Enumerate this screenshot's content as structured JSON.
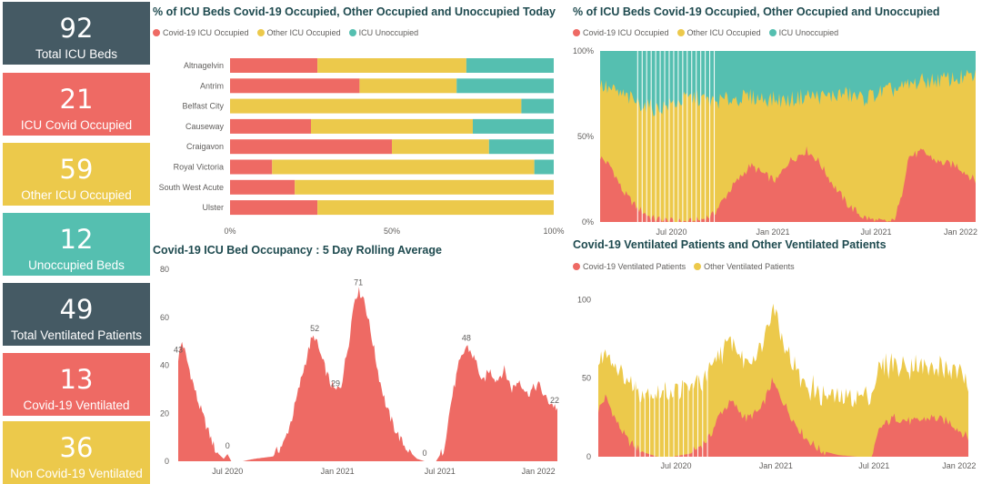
{
  "cards": [
    {
      "value": "92",
      "label": "Total ICU Beds",
      "style": "slate"
    },
    {
      "value": "21",
      "label": "ICU Covid Occupied",
      "style": "red"
    },
    {
      "value": "59",
      "label": "Other ICU Occupied",
      "style": "yellow"
    },
    {
      "value": "12",
      "label": "Unoccupied Beds",
      "style": "teal"
    },
    {
      "value": "49",
      "label": "Total Ventilated Patients",
      "style": "slate"
    },
    {
      "value": "13",
      "label": "Covid-19 Ventilated",
      "style": "red"
    },
    {
      "value": "36",
      "label": "Non Covid-19 Ventilated",
      "style": "yellow"
    }
  ],
  "colors": {
    "covid": "#ee6a64",
    "other": "#ecc94b",
    "unoccupied": "#55bfb0",
    "slate": "#455a64",
    "title": "#1e4a4f",
    "axis": "#605e5c"
  },
  "chart_data": [
    {
      "id": "today_bar",
      "type": "bar",
      "orientation": "horizontal",
      "stacked": "100%",
      "title": "% of ICU Beds Covid-19 Occupied, Other Occupied and Unoccupied Today",
      "categories": [
        "Altnagelvin",
        "Antrim",
        "Belfast City",
        "Causeway",
        "Craigavon",
        "Royal Victoria",
        "South West Acute",
        "Ulster"
      ],
      "series": [
        {
          "name": "Covid-19 ICU Occupied",
          "values": [
            27,
            40,
            0,
            25,
            50,
            13,
            20,
            27
          ]
        },
        {
          "name": "Other ICU Occupied",
          "values": [
            46,
            30,
            90,
            50,
            30,
            81,
            80,
            73
          ]
        },
        {
          "name": "ICU Unoccupied",
          "values": [
            27,
            30,
            10,
            25,
            20,
            6,
            0,
            0
          ]
        }
      ],
      "x_ticks": [
        "0%",
        "50%",
        "100%"
      ],
      "legend": "top-left"
    },
    {
      "id": "pct_area",
      "type": "area",
      "stacked": "100%",
      "title": "% of ICU Beds Covid-19 Occupied, Other Occupied and Unoccupied",
      "series": [
        {
          "name": "Covid-19 ICU Occupied",
          "keypoints": [
            [
              0,
              38
            ],
            [
              0.03,
              32
            ],
            [
              0.06,
              18
            ],
            [
              0.1,
              8
            ],
            [
              0.14,
              2
            ],
            [
              0.2,
              0
            ],
            [
              0.25,
              0
            ],
            [
              0.3,
              4
            ],
            [
              0.35,
              20
            ],
            [
              0.4,
              33
            ],
            [
              0.45,
              26
            ],
            [
              0.47,
              24
            ],
            [
              0.5,
              35
            ],
            [
              0.55,
              42
            ],
            [
              0.58,
              36
            ],
            [
              0.62,
              22
            ],
            [
              0.66,
              10
            ],
            [
              0.7,
              3
            ],
            [
              0.74,
              0
            ],
            [
              0.78,
              0
            ],
            [
              0.8,
              12
            ],
            [
              0.82,
              38
            ],
            [
              0.86,
              41
            ],
            [
              0.9,
              35
            ],
            [
              0.95,
              33
            ],
            [
              1.0,
              24
            ]
          ]
        },
        {
          "name": "Other ICU Occupied",
          "keypoints": [
            [
              0,
              80
            ],
            [
              0.05,
              75
            ],
            [
              0.1,
              70
            ],
            [
              0.15,
              66
            ],
            [
              0.2,
              70
            ],
            [
              0.25,
              73
            ],
            [
              0.3,
              70
            ],
            [
              0.35,
              72
            ],
            [
              0.4,
              73
            ],
            [
              0.45,
              72
            ],
            [
              0.5,
              71
            ],
            [
              0.55,
              74
            ],
            [
              0.6,
              73
            ],
            [
              0.65,
              75
            ],
            [
              0.7,
              72
            ],
            [
              0.75,
              76
            ],
            [
              0.8,
              78
            ],
            [
              0.85,
              82
            ],
            [
              0.9,
              83
            ],
            [
              0.95,
              84
            ],
            [
              1.0,
              85
            ]
          ]
        },
        {
          "name": "ICU Unoccupied"
        }
      ],
      "x_ticks": [
        "Jul 2020",
        "Jan 2021",
        "Jul 2021",
        "Jan 2022"
      ],
      "y_ticks": [
        "0%",
        "50%",
        "100%"
      ],
      "legend": "top-left"
    },
    {
      "id": "rolling_area",
      "type": "area",
      "title": "Covid-19 ICU Bed Occupancy : 5 Day Rolling Average",
      "ylim": [
        0,
        80
      ],
      "y_ticks": [
        0,
        20,
        40,
        60,
        80
      ],
      "x_ticks": [
        "Jul 2020",
        "Jan 2021",
        "Jul 2021",
        "Jan 2022"
      ],
      "keypoints": [
        [
          0,
          43
        ],
        [
          0.01,
          50
        ],
        [
          0.03,
          38
        ],
        [
          0.05,
          26
        ],
        [
          0.08,
          12
        ],
        [
          0.1,
          4
        ],
        [
          0.12,
          1
        ],
        [
          0.13,
          3
        ],
        [
          0.14,
          0
        ],
        [
          0.17,
          0
        ],
        [
          0.2,
          1
        ],
        [
          0.25,
          2
        ],
        [
          0.28,
          8
        ],
        [
          0.3,
          18
        ],
        [
          0.33,
          38
        ],
        [
          0.35,
          50
        ],
        [
          0.36,
          52
        ],
        [
          0.38,
          42
        ],
        [
          0.4,
          33
        ],
        [
          0.415,
          29
        ],
        [
          0.43,
          32
        ],
        [
          0.45,
          50
        ],
        [
          0.465,
          68
        ],
        [
          0.475,
          71
        ],
        [
          0.49,
          68
        ],
        [
          0.51,
          52
        ],
        [
          0.53,
          35
        ],
        [
          0.55,
          22
        ],
        [
          0.57,
          14
        ],
        [
          0.59,
          8
        ],
        [
          0.61,
          4
        ],
        [
          0.63,
          1
        ],
        [
          0.65,
          0
        ],
        [
          0.68,
          0
        ],
        [
          0.7,
          5
        ],
        [
          0.72,
          25
        ],
        [
          0.74,
          40
        ],
        [
          0.76,
          48
        ],
        [
          0.77,
          46
        ],
        [
          0.79,
          40
        ],
        [
          0.8,
          32
        ],
        [
          0.82,
          38
        ],
        [
          0.84,
          34
        ],
        [
          0.86,
          38
        ],
        [
          0.88,
          30
        ],
        [
          0.9,
          34
        ],
        [
          0.92,
          28
        ],
        [
          0.95,
          32
        ],
        [
          0.97,
          26
        ],
        [
          1.0,
          22
        ]
      ],
      "data_labels": [
        {
          "t": 0,
          "v": "43"
        },
        {
          "t": 0.13,
          "v": "0"
        },
        {
          "t": 0.36,
          "v": "52"
        },
        {
          "t": 0.415,
          "v": "29"
        },
        {
          "t": 0.475,
          "v": "71"
        },
        {
          "t": 0.65,
          "v": "0"
        },
        {
          "t": 0.76,
          "v": "48"
        },
        {
          "t": 1.0,
          "v": "22"
        }
      ]
    },
    {
      "id": "vent_area",
      "type": "area",
      "stacked": true,
      "title": "Covid-19 Ventilated Patients and Other Ventilated Patients",
      "ylim": [
        0,
        110
      ],
      "y_ticks": [
        0,
        50,
        100
      ],
      "x_ticks": [
        "Jul 2020",
        "Jan 2021",
        "Jul 2021",
        "Jan 2022"
      ],
      "legend": "top-left",
      "series": [
        {
          "name": "Covid-19 Ventilated Patients",
          "keypoints": [
            [
              0,
              30
            ],
            [
              0.02,
              38
            ],
            [
              0.05,
              22
            ],
            [
              0.08,
              10
            ],
            [
              0.12,
              3
            ],
            [
              0.16,
              0
            ],
            [
              0.2,
              0
            ],
            [
              0.25,
              2
            ],
            [
              0.3,
              12
            ],
            [
              0.33,
              28
            ],
            [
              0.36,
              35
            ],
            [
              0.4,
              24
            ],
            [
              0.44,
              30
            ],
            [
              0.47,
              48
            ],
            [
              0.5,
              35
            ],
            [
              0.53,
              22
            ],
            [
              0.56,
              12
            ],
            [
              0.6,
              4
            ],
            [
              0.65,
              1
            ],
            [
              0.7,
              0
            ],
            [
              0.74,
              0
            ],
            [
              0.76,
              18
            ],
            [
              0.8,
              25
            ],
            [
              0.85,
              22
            ],
            [
              0.9,
              25
            ],
            [
              0.95,
              22
            ],
            [
              1.0,
              12
            ]
          ]
        },
        {
          "name": "Other Ventilated Patients",
          "keypoints": [
            [
              0,
              28
            ],
            [
              0.05,
              35
            ],
            [
              0.1,
              38
            ],
            [
              0.15,
              40
            ],
            [
              0.2,
              42
            ],
            [
              0.25,
              42
            ],
            [
              0.3,
              40
            ],
            [
              0.35,
              38
            ],
            [
              0.4,
              36
            ],
            [
              0.44,
              38
            ],
            [
              0.47,
              50
            ],
            [
              0.5,
              40
            ],
            [
              0.55,
              34
            ],
            [
              0.6,
              36
            ],
            [
              0.65,
              36
            ],
            [
              0.7,
              38
            ],
            [
              0.74,
              40
            ],
            [
              0.78,
              36
            ],
            [
              0.82,
              34
            ],
            [
              0.86,
              36
            ],
            [
              0.9,
              30
            ],
            [
              0.95,
              34
            ],
            [
              1.0,
              38
            ]
          ]
        }
      ]
    }
  ]
}
